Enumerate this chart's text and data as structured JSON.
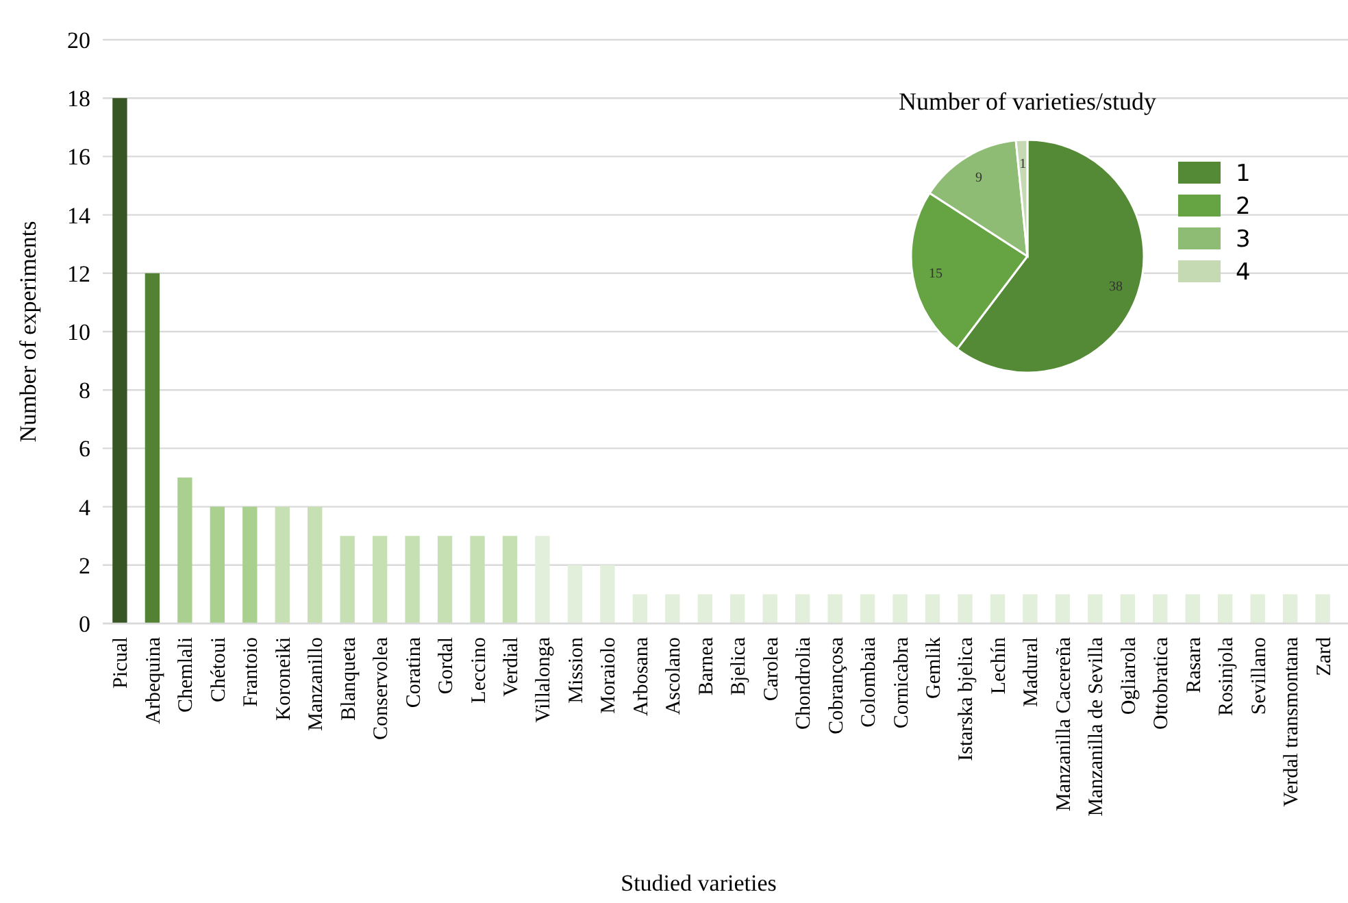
{
  "chart_data": [
    {
      "type": "bar",
      "xlabel": "Studied varieties",
      "ylabel": "Number of experiments",
      "categories": [
        "Picual",
        "Arbequina",
        "Chemlali",
        "Chétoui",
        "Frantoio",
        "Koroneiki",
        "Manzanillo",
        "Blanqueta",
        "Conservolea",
        "Coratina",
        "Gordal",
        "Leccino",
        "Verdial",
        "Villalonga",
        "Mission",
        "Moraiolo",
        "Arbosana",
        "Ascolano",
        "Barnea",
        "Bjelica",
        "Carolea",
        "Chondrolia",
        "Cobrançosa",
        "Colombaia",
        "Cornicabra",
        "Gemlik",
        "Istarska bjelica",
        "Lechín",
        "Madural",
        "Manzanilla Cacereña",
        "Manzanilla de Sevilla",
        "Ogliarola",
        "Ottobratica",
        "Rasara",
        "Rosinjola",
        "Sevillano",
        "Verdal transmontana",
        "Zard"
      ],
      "values": [
        18,
        12,
        5,
        4,
        4,
        4,
        4,
        3,
        3,
        3,
        3,
        3,
        3,
        3,
        2,
        2,
        1,
        1,
        1,
        1,
        1,
        1,
        1,
        1,
        1,
        1,
        1,
        1,
        1,
        1,
        1,
        1,
        1,
        1,
        1,
        1,
        1,
        1
      ],
      "colors": [
        "#375623",
        "#548235",
        "#a9d08e",
        "#a9d08e",
        "#a9d08e",
        "#c6e0b4",
        "#c6e0b4",
        "#c6e0b4",
        "#c6e0b4",
        "#c6e0b4",
        "#c6e0b4",
        "#c6e0b4",
        "#c6e0b4",
        "#e2efda",
        "#e2efda",
        "#e2efda",
        "#e2efda",
        "#e2efda",
        "#e2efda",
        "#e2efda",
        "#e2efda",
        "#e2efda",
        "#e2efda",
        "#e2efda",
        "#e2efda",
        "#e2efda",
        "#e2efda",
        "#e2efda",
        "#e2efda",
        "#e2efda",
        "#e2efda",
        "#e2efda",
        "#e2efda",
        "#e2efda",
        "#e2efda",
        "#e2efda",
        "#e2efda",
        "#e2efda"
      ],
      "ylim": [
        0,
        20
      ],
      "yticks": [
        0,
        2,
        4,
        6,
        8,
        10,
        12,
        14,
        16,
        18,
        20
      ],
      "grid": "y"
    },
    {
      "type": "pie",
      "title": "Number of varieties/study",
      "categories": [
        "1",
        "2",
        "3",
        "4"
      ],
      "values": [
        38,
        15,
        9,
        1
      ],
      "colors": [
        "#548a35",
        "#66a343",
        "#8fbc74",
        "#c5d9b3"
      ],
      "data_labels": true,
      "legend": "right"
    }
  ]
}
